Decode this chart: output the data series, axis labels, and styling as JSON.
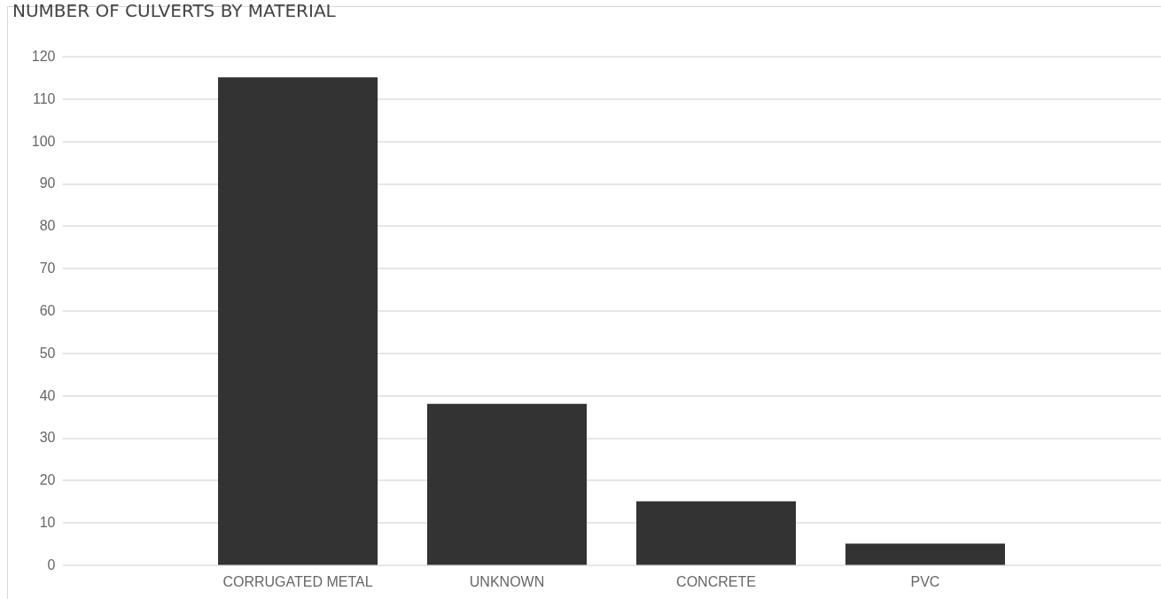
{
  "chart_data": {
    "type": "bar",
    "title": "NUMBER OF CULVERTS BY MATERIAL",
    "categories": [
      "CORRUGATED METAL",
      "UNKNOWN",
      "CONCRETE",
      "PVC"
    ],
    "values": [
      115,
      38,
      15,
      5
    ],
    "color": "#333333",
    "ylim": [
      0,
      120
    ],
    "yticks": [
      0,
      10,
      20,
      30,
      40,
      50,
      60,
      70,
      80,
      90,
      100,
      110,
      120
    ],
    "grid": "y"
  }
}
